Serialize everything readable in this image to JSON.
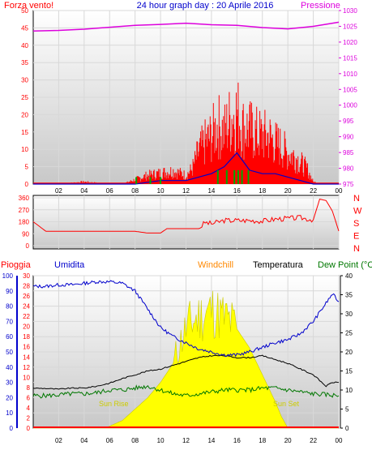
{
  "chart_data": [
    {
      "type": "line",
      "title": "24 hour graph day : 20 Aprile 2016",
      "left_axis_label": "Forza vento!",
      "right_axis_label": "Pressione",
      "x_ticks": [
        "02",
        "04",
        "06",
        "08",
        "10",
        "12",
        "14",
        "16",
        "18",
        "20",
        "22",
        "00"
      ],
      "left_ticks": [
        0,
        5,
        10,
        15,
        20,
        25,
        30,
        35,
        40,
        45,
        50
      ],
      "right_ticks": [
        975,
        980,
        985,
        990,
        995,
        1000,
        1005,
        1010,
        1015,
        1020,
        1025,
        1030
      ],
      "ylim_left": [
        0,
        50
      ],
      "ylim_right": [
        975,
        1030
      ],
      "colors": {
        "pressure": "#dd00dd",
        "gust": "#ff0000",
        "wind": "#0000cc",
        "wind_low": "#00aa00"
      },
      "series": [
        {
          "key": "pressure",
          "x": [
            0,
            2,
            4,
            6,
            8,
            10,
            12,
            14,
            16,
            18,
            20,
            22,
            24
          ],
          "values": [
            1023.5,
            1023.7,
            1024.1,
            1024.7,
            1025.3,
            1025.6,
            1026.0,
            1025.5,
            1025.3,
            1024.6,
            1024.2,
            1025.0,
            1026.3
          ]
        },
        {
          "key": "gust",
          "x": [
            0,
            2,
            4,
            6,
            7,
            8,
            9,
            10,
            11,
            12,
            12.5,
            13,
            13.5,
            14,
            14.5,
            15,
            15.5,
            16,
            16.5,
            17,
            17.5,
            18,
            18.5,
            19,
            19.5,
            20,
            20.5,
            21,
            21.5,
            22,
            23,
            24
          ],
          "values": [
            0,
            0,
            1,
            0,
            0,
            2,
            4,
            5,
            6,
            4,
            7,
            15,
            19,
            22,
            27,
            24,
            30,
            33,
            26,
            25,
            23,
            22,
            22,
            19,
            17,
            14,
            13,
            10,
            7,
            1,
            0,
            0
          ]
        },
        {
          "key": "wind",
          "x": [
            0,
            8,
            10,
            12,
            13,
            14,
            15,
            16,
            17,
            18,
            19,
            20,
            21,
            22,
            24
          ],
          "values": [
            0,
            0,
            1,
            1,
            2,
            3,
            5,
            9,
            4,
            3,
            3,
            2,
            1,
            0,
            0
          ]
        }
      ]
    },
    {
      "type": "scatter",
      "right_axis_letters": [
        "N",
        "W",
        "S",
        "E",
        "N"
      ],
      "left_ticks": [
        0,
        90,
        180,
        270,
        360
      ],
      "ylim": [
        0,
        360
      ],
      "x_ticks": [],
      "color": "#ff0000",
      "series": [
        {
          "key": "direction",
          "x": [
            0,
            1,
            2,
            4,
            6,
            8,
            9,
            10,
            10.5,
            11,
            12,
            13,
            13.5,
            14,
            15,
            16,
            17,
            18,
            19,
            20,
            21,
            22,
            22.5,
            23,
            23.5,
            24
          ],
          "values": [
            180,
            108,
            108,
            108,
            108,
            108,
            95,
            95,
            128,
            128,
            128,
            128,
            175,
            165,
            190,
            190,
            190,
            185,
            200,
            205,
            210,
            195,
            350,
            340,
            260,
            110
          ]
        }
      ]
    },
    {
      "type": "area",
      "legend": [
        {
          "label": "Pioggia",
          "color": "#ff0000"
        },
        {
          "label": "Umidita",
          "color": "#0000cc"
        },
        {
          "label": "Windchill",
          "color": "#ff8800"
        },
        {
          "label": "Temperatura",
          "color": "#000000"
        },
        {
          "label": "Dew Point (°C",
          "color": "#007700"
        }
      ],
      "rain_ticks": [
        0,
        2,
        4,
        6,
        8,
        10,
        12,
        14,
        16,
        18,
        20,
        22,
        24,
        26,
        28,
        30
      ],
      "humidity_ticks": [
        0,
        10,
        20,
        30,
        40,
        50,
        60,
        70,
        80,
        90,
        100
      ],
      "temp_ticks": [
        0,
        5,
        10,
        15,
        20,
        25,
        30,
        35,
        40
      ],
      "x_ticks": [
        "02",
        "04",
        "06",
        "08",
        "10",
        "12",
        "14",
        "16",
        "18",
        "20",
        "22",
        "00"
      ],
      "annotations": [
        "Sun Rise",
        "Sun Set"
      ],
      "colors": {
        "solar": "#ffff00",
        "solar_edge": "#cccc00",
        "humidity": "#0000cc",
        "temperature": "#000000",
        "dewpoint": "#007700",
        "rain": "#ff0000"
      },
      "series": [
        {
          "key": "humidity",
          "x": [
            0,
            1,
            2,
            3,
            4,
            5,
            6,
            7,
            8,
            9,
            10,
            11,
            12,
            13,
            14,
            15,
            16,
            17,
            18,
            19,
            20,
            21,
            22,
            23,
            23.5,
            24
          ],
          "values": [
            93,
            93,
            94,
            94,
            95,
            96,
            96,
            95,
            90,
            78,
            66,
            60,
            56,
            52,
            50,
            48,
            48,
            50,
            53,
            56,
            58,
            62,
            70,
            82,
            88,
            83
          ]
        },
        {
          "key": "temperature",
          "x": [
            0,
            1,
            2,
            3,
            4,
            5,
            6,
            7,
            8,
            9,
            10,
            11,
            12,
            13,
            14,
            15,
            16,
            17,
            18,
            19,
            20,
            21,
            22,
            23,
            23.5,
            24
          ],
          "values": [
            10.5,
            10.4,
            10.2,
            10.5,
            10.5,
            11,
            11.8,
            13,
            14,
            15,
            15.5,
            16.5,
            17.5,
            18.5,
            19,
            19,
            18.5,
            18.5,
            19,
            18,
            17,
            15.5,
            14,
            11,
            12,
            12
          ]
        },
        {
          "key": "dewpoint",
          "x": [
            0,
            1,
            2,
            3,
            4,
            5,
            6,
            7,
            8,
            9,
            10,
            11,
            12,
            13,
            14,
            15,
            16,
            17,
            18,
            19,
            20,
            21,
            22,
            23,
            24
          ],
          "values": [
            8.5,
            8.5,
            8.7,
            9,
            9,
            9.3,
            10,
            10,
            10.5,
            11,
            10,
            9,
            8.5,
            9,
            9.5,
            10,
            10,
            10,
            10.5,
            10.5,
            10,
            9.5,
            9,
            8.8,
            8.5
          ]
        },
        {
          "key": "solar",
          "x": [
            0,
            5.5,
            6,
            7,
            8,
            9,
            10,
            11,
            11.5,
            12,
            12.5,
            13,
            13.5,
            14,
            14.5,
            15,
            15.5,
            16,
            17,
            18,
            19,
            19.5,
            20,
            24
          ],
          "values": [
            0,
            0,
            0.5,
            2,
            5,
            8,
            12,
            17,
            22,
            26,
            28,
            29,
            30,
            31,
            30,
            29,
            28,
            26,
            21,
            14,
            7,
            3,
            0,
            0
          ]
        },
        {
          "key": "rain",
          "x": [
            0,
            24
          ],
          "values": [
            0,
            0
          ]
        }
      ]
    }
  ]
}
